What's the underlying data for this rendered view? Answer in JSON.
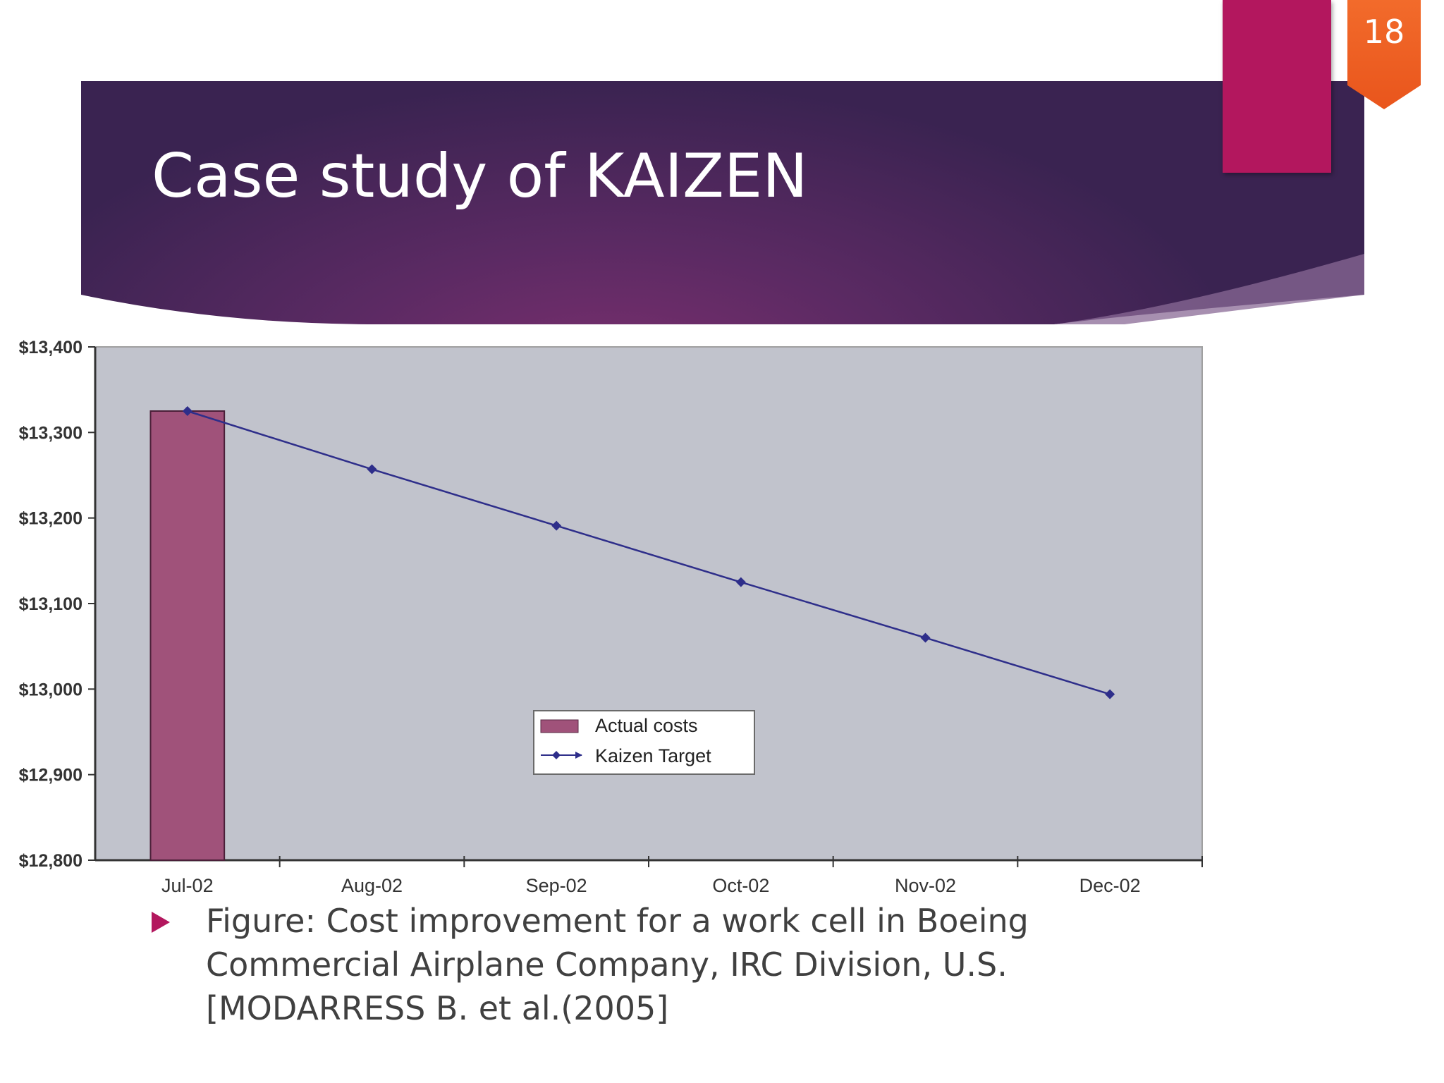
{
  "slide": {
    "title": "Case study of KAIZEN",
    "page_number": "18",
    "colors": {
      "banner": "#5b2a63",
      "accent_magenta": "#b3175e",
      "badge_orange": "#f26b2b"
    }
  },
  "caption": {
    "bullet_icon": "triangle-right-icon",
    "text": "Figure: Cost improvement for a work cell in Boeing Commercial Airplane Company, IRC Division, U.S. [MODARRESS B. et al.(2005]"
  },
  "chart_data": {
    "type": "bar",
    "categories": [
      "Jul-02",
      "Aug-02",
      "Sep-02",
      "Oct-02",
      "Nov-02",
      "Dec-02"
    ],
    "ylim": [
      12800,
      13400
    ],
    "yticks": [
      12800,
      12900,
      13000,
      13100,
      13200,
      13300,
      13400
    ],
    "ytick_labels": [
      "$12,800",
      "$12,900",
      "$13,000",
      "$13,100",
      "$13,200",
      "$13,300",
      "$13,400"
    ],
    "title": "",
    "xlabel": "",
    "ylabel": "",
    "grid": false,
    "legend_position": "center",
    "series": [
      {
        "name": "Actual costs",
        "type": "bar",
        "color": "#a0527a",
        "values": [
          13325,
          null,
          null,
          null,
          null,
          null
        ]
      },
      {
        "name": "Kaizen Target",
        "type": "line",
        "color": "#2e2e8a",
        "marker": "diamond",
        "values": [
          13325,
          13257,
          13191,
          13125,
          13060,
          12994
        ]
      }
    ],
    "plot_background": "#c1c3cc"
  }
}
